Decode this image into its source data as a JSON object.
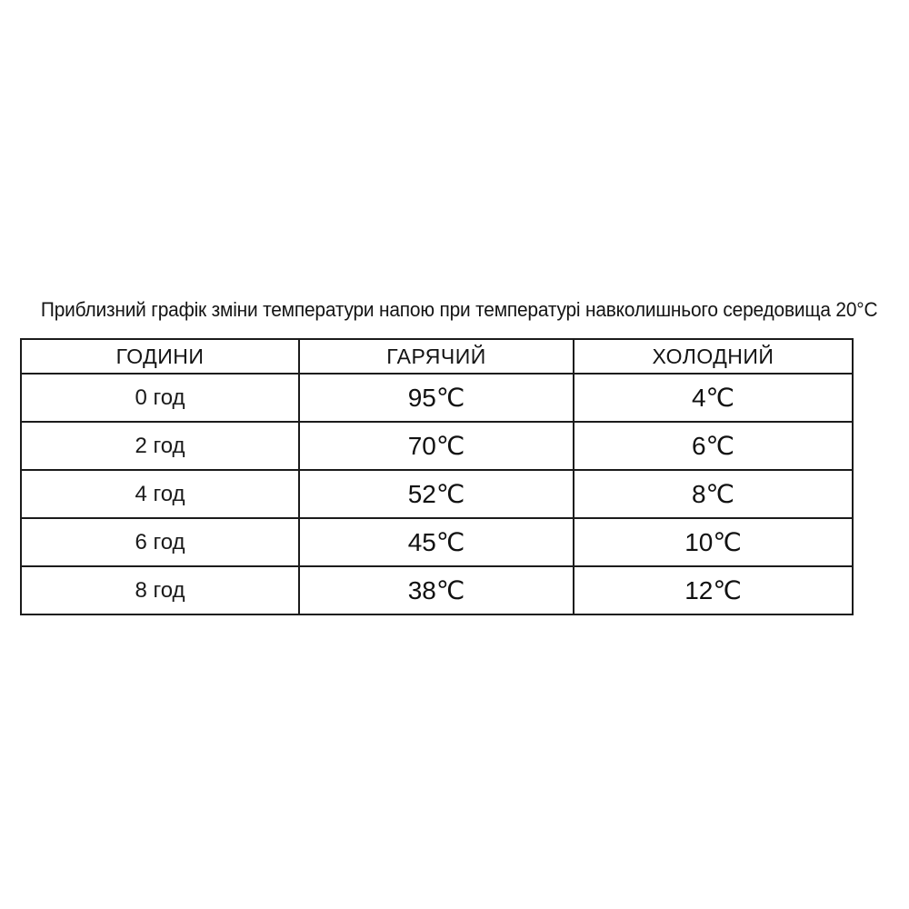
{
  "page": {
    "background": "#ffffff",
    "text_color": "#161616",
    "border_color": "#1b1b1b"
  },
  "title": "Приблизний графік зміни температури напою при температурі навколишнього середовища 20°C",
  "table": {
    "columns": [
      "ГОДИНИ",
      "ГАРЯЧИЙ",
      "ХОЛОДНИЙ"
    ],
    "rows": [
      {
        "hours": "0 год",
        "hot": "95℃",
        "cold": "4℃"
      },
      {
        "hours": "2 год",
        "hot": "70℃",
        "cold": "6℃"
      },
      {
        "hours": "4 год",
        "hot": "52℃",
        "cold": "8℃"
      },
      {
        "hours": "6 год",
        "hot": "45℃",
        "cold": "10℃"
      },
      {
        "hours": "8 год",
        "hot": "38℃",
        "cold": "12℃"
      }
    ]
  },
  "chart_data": {
    "type": "table",
    "title": "Приблизний графік зміни температури напою при температурі навколишнього середовища 20°C",
    "columns": [
      "ГОДИНИ",
      "ГАРЯЧИЙ",
      "ХОЛОДНИЙ"
    ],
    "x": [
      0,
      2,
      4,
      6,
      8
    ],
    "x_unit": "год",
    "series": [
      {
        "name": "ГАРЯЧИЙ",
        "values": [
          95,
          70,
          52,
          45,
          38
        ]
      },
      {
        "name": "ХОЛОДНИЙ",
        "values": [
          4,
          6,
          8,
          10,
          12
        ]
      }
    ],
    "value_unit": "°C",
    "ambient_temperature_from_title": "20°C",
    "rows": [
      [
        "0 год",
        "95℃",
        "4℃"
      ],
      [
        "2 год",
        "70℃",
        "6℃"
      ],
      [
        "4 год",
        "52℃",
        "8℃"
      ],
      [
        "6 год",
        "45℃",
        "10℃"
      ],
      [
        "8 год",
        "38℃",
        "12℃"
      ]
    ]
  }
}
